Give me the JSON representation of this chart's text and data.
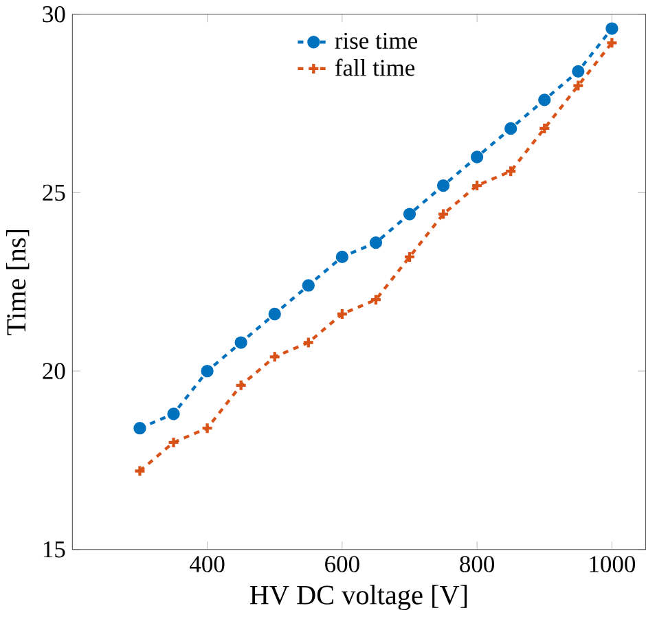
{
  "chart_data": {
    "type": "line",
    "xlabel": "HV DC voltage [V]",
    "ylabel": "Time [ns]",
    "x": [
      300,
      350,
      400,
      450,
      500,
      550,
      600,
      650,
      700,
      750,
      800,
      850,
      900,
      950,
      1000
    ],
    "series": [
      {
        "name": "rise time",
        "color": "#0072bd",
        "marker": "circle",
        "values": [
          18.4,
          18.8,
          20.0,
          20.8,
          21.6,
          22.4,
          23.2,
          23.6,
          24.4,
          25.2,
          26.0,
          26.8,
          27.6,
          28.4,
          29.6
        ]
      },
      {
        "name": "fall time",
        "color": "#d95319",
        "marker": "cross",
        "values": [
          17.2,
          18.0,
          18.4,
          19.6,
          20.4,
          20.8,
          21.6,
          22.0,
          23.2,
          24.4,
          25.2,
          25.6,
          26.8,
          28.0,
          29.2
        ]
      }
    ],
    "xlim": [
      200,
      1050
    ],
    "ylim": [
      15,
      30
    ],
    "xticks": [
      400,
      600,
      800,
      1000
    ],
    "yticks": [
      15,
      20,
      25,
      30
    ],
    "legend": "top",
    "line_style": "dashed",
    "grid": false
  }
}
